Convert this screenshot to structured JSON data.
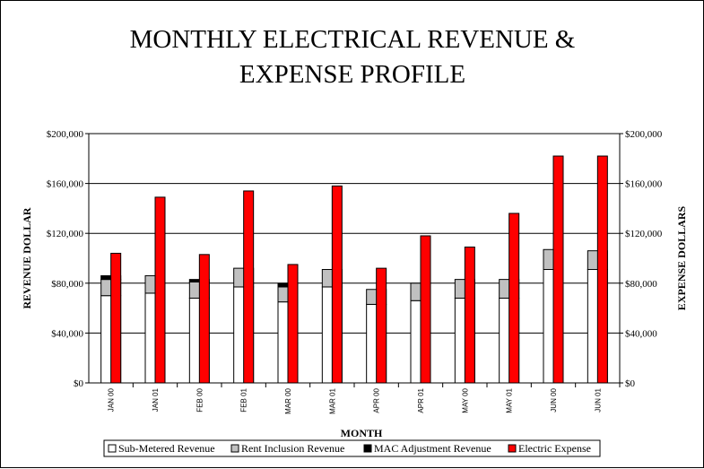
{
  "chart_data": {
    "type": "bar",
    "title_line1": "MONTHLY ELECTRICAL REVENUE &",
    "title_line2": "EXPENSE PROFILE",
    "xlabel": "MONTH",
    "ylabel_left": "REVENUE DOLLAR",
    "ylabel_right": "EXPENSE DOLLARS",
    "ylim": [
      0,
      200000
    ],
    "yticks": [
      "$0",
      "$40,000",
      "$80,000",
      "$120,000",
      "$160,000",
      "$200,000"
    ],
    "grid": true,
    "legend_position": "bottom",
    "categories": [
      "JAN 00",
      "JAN 01",
      "FEB 00",
      "FEB 01",
      "MAR 00",
      "MAR 01",
      "APR 00",
      "APR 01",
      "MAY 00",
      "MAY 01",
      "JUN 00",
      "JUN 01"
    ],
    "series": [
      {
        "name": "Sub-Metered Revenue",
        "color": "#ffffff",
        "stack": "revenue",
        "values": [
          70000,
          72000,
          68000,
          77000,
          65000,
          77000,
          63000,
          66000,
          68000,
          68000,
          91000,
          91000
        ]
      },
      {
        "name": "Rent Inclusion Revenue",
        "color": "#c0c0c0",
        "stack": "revenue",
        "values": [
          13000,
          14000,
          13000,
          15000,
          12000,
          14000,
          12000,
          14000,
          15000,
          15000,
          16000,
          15000
        ]
      },
      {
        "name": "MAC Adjustment Revenue",
        "color": "#000000",
        "stack": "revenue",
        "values": [
          3000,
          0,
          2000,
          0,
          3000,
          0,
          0,
          0,
          0,
          0,
          0,
          0
        ]
      },
      {
        "name": "Electric Expense",
        "color": "#ff0000",
        "stack": "expense",
        "values": [
          104000,
          149000,
          103000,
          154000,
          95000,
          158000,
          92000,
          118000,
          109000,
          136000,
          182000,
          182000
        ]
      }
    ]
  }
}
